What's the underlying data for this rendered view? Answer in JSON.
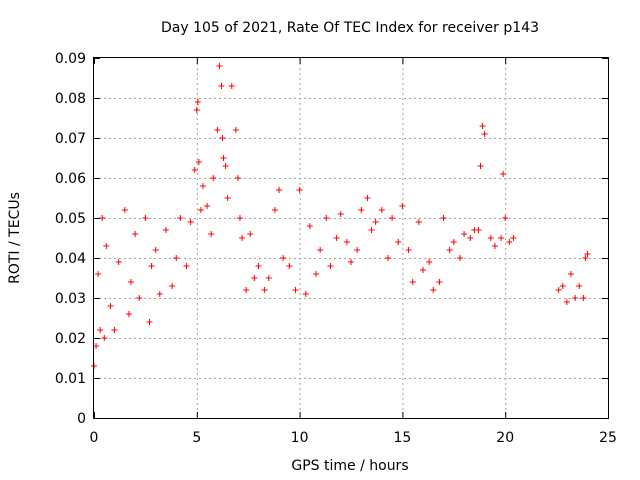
{
  "chart_data": {
    "type": "scatter",
    "title": "Day 105 of 2021, Rate Of TEC Index for receiver p143",
    "xlabel": "GPS time / hours",
    "ylabel": "ROTI / TECUs",
    "xlim": [
      0,
      25
    ],
    "ylim": [
      0,
      0.09
    ],
    "x_ticks": [
      0,
      5,
      10,
      15,
      20,
      25
    ],
    "y_ticks": [
      0,
      0.01,
      0.02,
      0.03,
      0.04,
      0.05,
      0.06,
      0.07,
      0.08,
      0.09
    ],
    "x_tick_labels": [
      "0",
      "5",
      "10",
      "15",
      "20",
      "25"
    ],
    "y_tick_labels": [
      "0",
      "0.01",
      "0.02",
      "0.03",
      "0.04",
      "0.05",
      "0.06",
      "0.07",
      "0.08",
      "0.09"
    ],
    "grid": true,
    "marker": "+",
    "marker_color": "#ff0000",
    "data_gaps_hours": [
      [
        20.4,
        22.6
      ]
    ],
    "series": [
      {
        "x": [
          0.0,
          0.1,
          0.2,
          0.3,
          0.4,
          0.5,
          0.6,
          0.8,
          1.0,
          1.2,
          1.5,
          1.7,
          1.8,
          2.0,
          2.2,
          2.5,
          2.7,
          2.8,
          3.0,
          3.2,
          3.5,
          3.8,
          4.0,
          4.2,
          4.5,
          4.7,
          4.9,
          5.0,
          5.05,
          5.1,
          5.2,
          5.3,
          5.5,
          5.7,
          5.8,
          6.0,
          6.1,
          6.2,
          6.25,
          6.3,
          6.4,
          6.5,
          6.7,
          6.9,
          7.0,
          7.1,
          7.2,
          7.4,
          7.6,
          7.8,
          8.0,
          8.3,
          8.5,
          8.8,
          9.0,
          9.2,
          9.5,
          9.8,
          10.0,
          10.3,
          10.5,
          10.8,
          11.0,
          11.3,
          11.5,
          11.8,
          12.0,
          12.3,
          12.5,
          12.8,
          13.0,
          13.3,
          13.5,
          13.7,
          14.0,
          14.3,
          14.5,
          14.8,
          15.0,
          15.3,
          15.5,
          15.8,
          16.0,
          16.3,
          16.5,
          16.8,
          17.0,
          17.3,
          17.5,
          17.8,
          18.0,
          18.3,
          18.5,
          18.7,
          18.8,
          18.9,
          19.0,
          19.3,
          19.5,
          19.8,
          19.9,
          20.0,
          20.2,
          20.4,
          22.6,
          22.8,
          23.0,
          23.2,
          23.4,
          23.6,
          23.8,
          23.9,
          24.0
        ],
        "y": [
          0.013,
          0.018,
          0.036,
          0.022,
          0.05,
          0.02,
          0.043,
          0.028,
          0.022,
          0.039,
          0.052,
          0.026,
          0.034,
          0.046,
          0.03,
          0.05,
          0.024,
          0.038,
          0.042,
          0.031,
          0.047,
          0.033,
          0.04,
          0.05,
          0.038,
          0.049,
          0.062,
          0.077,
          0.079,
          0.064,
          0.052,
          0.058,
          0.053,
          0.046,
          0.06,
          0.072,
          0.088,
          0.083,
          0.07,
          0.065,
          0.063,
          0.055,
          0.083,
          0.072,
          0.06,
          0.05,
          0.045,
          0.032,
          0.046,
          0.035,
          0.038,
          0.032,
          0.035,
          0.052,
          0.057,
          0.04,
          0.038,
          0.032,
          0.057,
          0.031,
          0.048,
          0.036,
          0.042,
          0.05,
          0.038,
          0.045,
          0.051,
          0.044,
          0.039,
          0.042,
          0.052,
          0.055,
          0.047,
          0.049,
          0.052,
          0.04,
          0.05,
          0.044,
          0.053,
          0.042,
          0.034,
          0.049,
          0.037,
          0.039,
          0.032,
          0.034,
          0.05,
          0.042,
          0.044,
          0.04,
          0.046,
          0.045,
          0.047,
          0.047,
          0.063,
          0.073,
          0.071,
          0.045,
          0.043,
          0.045,
          0.061,
          0.05,
          0.044,
          0.045,
          0.032,
          0.033,
          0.029,
          0.036,
          0.03,
          0.033,
          0.03,
          0.04,
          0.041
        ]
      }
    ]
  }
}
